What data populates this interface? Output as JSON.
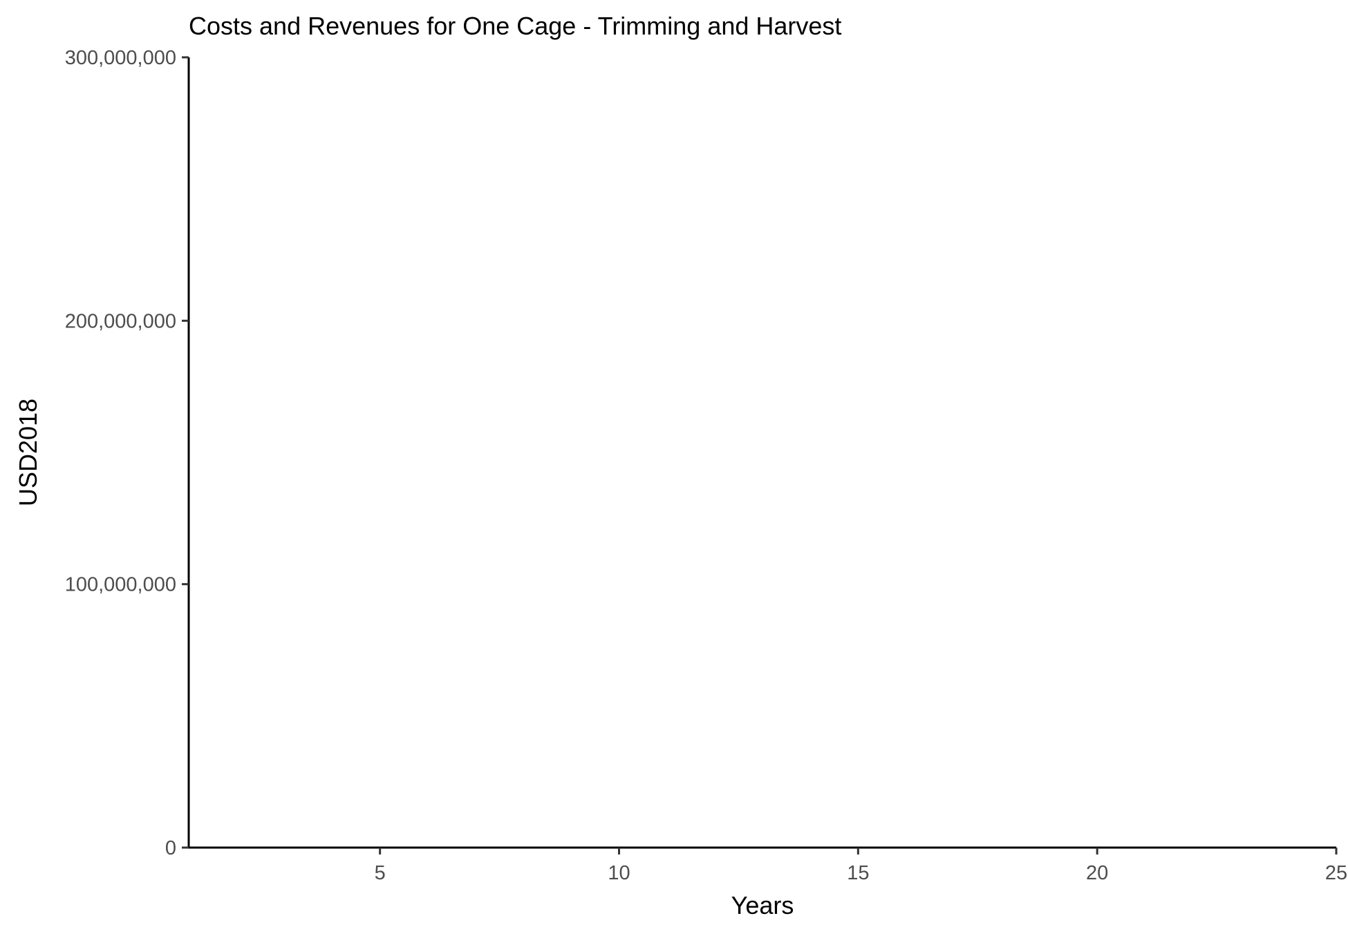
{
  "chart_data": {
    "type": "line",
    "title": "Costs and Revenues for One Cage - Trimming and Harvest",
    "xlabel": "Years",
    "ylabel": "USD2018",
    "xlim": [
      1,
      25
    ],
    "ylim": [
      0,
      300000000
    ],
    "x_ticks": [
      5,
      10,
      15,
      20,
      25
    ],
    "x_tick_labels": [
      "5",
      "10",
      "15",
      "20",
      "25"
    ],
    "y_ticks": [
      0,
      100000000,
      200000000,
      300000000
    ],
    "y_tick_labels": [
      "0",
      "100,000,000",
      "200,000,000",
      "300,000,000"
    ],
    "grid": false,
    "legend": "none",
    "series": [],
    "colors": {
      "axis": "#000000",
      "tick_label": "#4d4d4d",
      "background": "#ffffff"
    }
  }
}
